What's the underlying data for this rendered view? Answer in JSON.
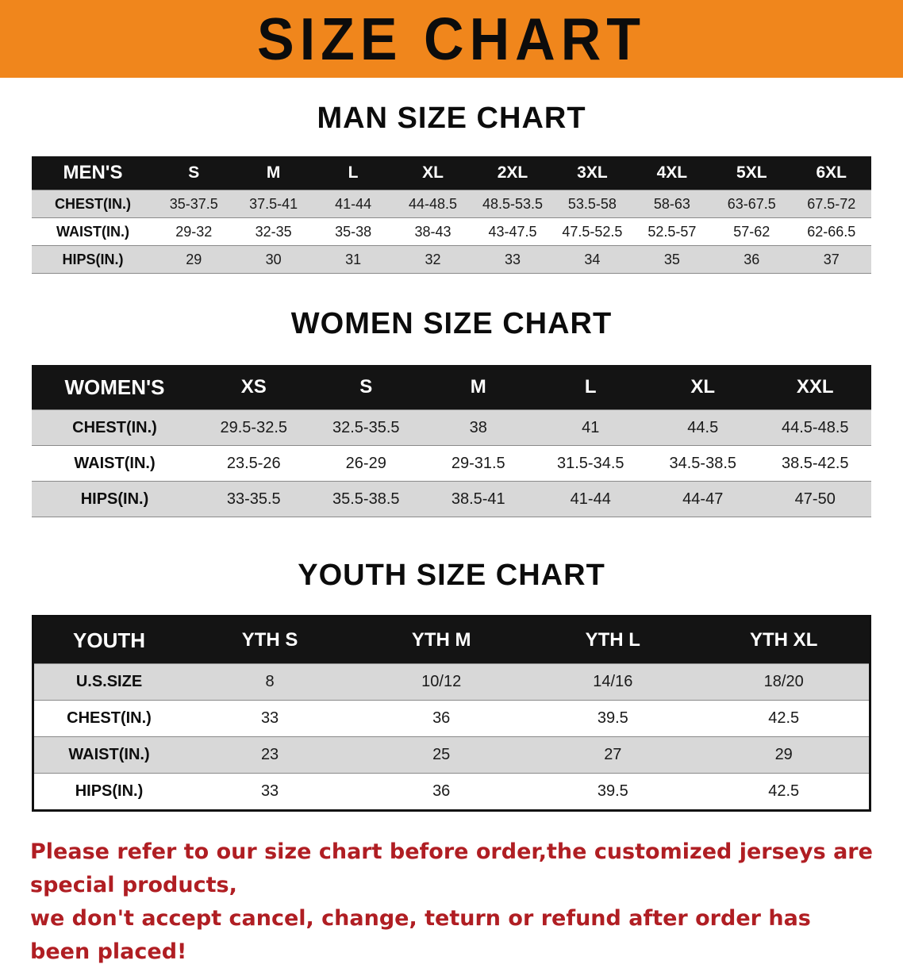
{
  "banner": {
    "title": "SIZE CHART",
    "bg_color": "#F0861C"
  },
  "colors": {
    "header_bar": "#141414",
    "row_shade": "#d8d8d8",
    "notice_red": "#B01E23"
  },
  "chart_data": [
    {
      "type": "table",
      "title": "MAN SIZE CHART",
      "columns": [
        "MEN'S",
        "S",
        "M",
        "L",
        "XL",
        "2XL",
        "3XL",
        "4XL",
        "5XL",
        "6XL"
      ],
      "rows": [
        {
          "label": "CHEST(IN.)",
          "values": [
            "35-37.5",
            "37.5-41",
            "41-44",
            "44-48.5",
            "48.5-53.5",
            "53.5-58",
            "58-63",
            "63-67.5",
            "67.5-72"
          ]
        },
        {
          "label": "WAIST(IN.)",
          "values": [
            "29-32",
            "32-35",
            "35-38",
            "38-43",
            "43-47.5",
            "47.5-52.5",
            "52.5-57",
            "57-62",
            "62-66.5"
          ]
        },
        {
          "label": "HIPS(IN.)",
          "values": [
            "29",
            "30",
            "31",
            "32",
            "33",
            "34",
            "35",
            "36",
            "37"
          ]
        }
      ]
    },
    {
      "type": "table",
      "title": "WOMEN SIZE CHART",
      "columns": [
        "WOMEN'S",
        "XS",
        "S",
        "M",
        "L",
        "XL",
        "XXL"
      ],
      "rows": [
        {
          "label": "CHEST(IN.)",
          "values": [
            "29.5-32.5",
            "32.5-35.5",
            "38",
            "41",
            "44.5",
            "44.5-48.5"
          ]
        },
        {
          "label": "WAIST(IN.)",
          "values": [
            "23.5-26",
            "26-29",
            "29-31.5",
            "31.5-34.5",
            "34.5-38.5",
            "38.5-42.5"
          ]
        },
        {
          "label": "HIPS(IN.)",
          "values": [
            "33-35.5",
            "35.5-38.5",
            "38.5-41",
            "41-44",
            "44-47",
            "47-50"
          ]
        }
      ]
    },
    {
      "type": "table",
      "title": "YOUTH SIZE CHART",
      "columns": [
        "YOUTH",
        "YTH S",
        "YTH M",
        "YTH L",
        "YTH XL"
      ],
      "rows": [
        {
          "label": "U.S.SIZE",
          "values": [
            "8",
            "10/12",
            "14/16",
            "18/20"
          ]
        },
        {
          "label": "CHEST(IN.)",
          "values": [
            "33",
            "36",
            "39.5",
            "42.5"
          ]
        },
        {
          "label": "WAIST(IN.)",
          "values": [
            "23",
            "25",
            "27",
            "29"
          ]
        },
        {
          "label": "HIPS(IN.)",
          "values": [
            "33",
            "36",
            "39.5",
            "42.5"
          ]
        }
      ]
    }
  ],
  "footer": {
    "line1": "Please refer to our size chart before order,the customized jerseys are special products,",
    "line2": "we don't accept cancel, change, teturn or refund after order has been placed!"
  }
}
